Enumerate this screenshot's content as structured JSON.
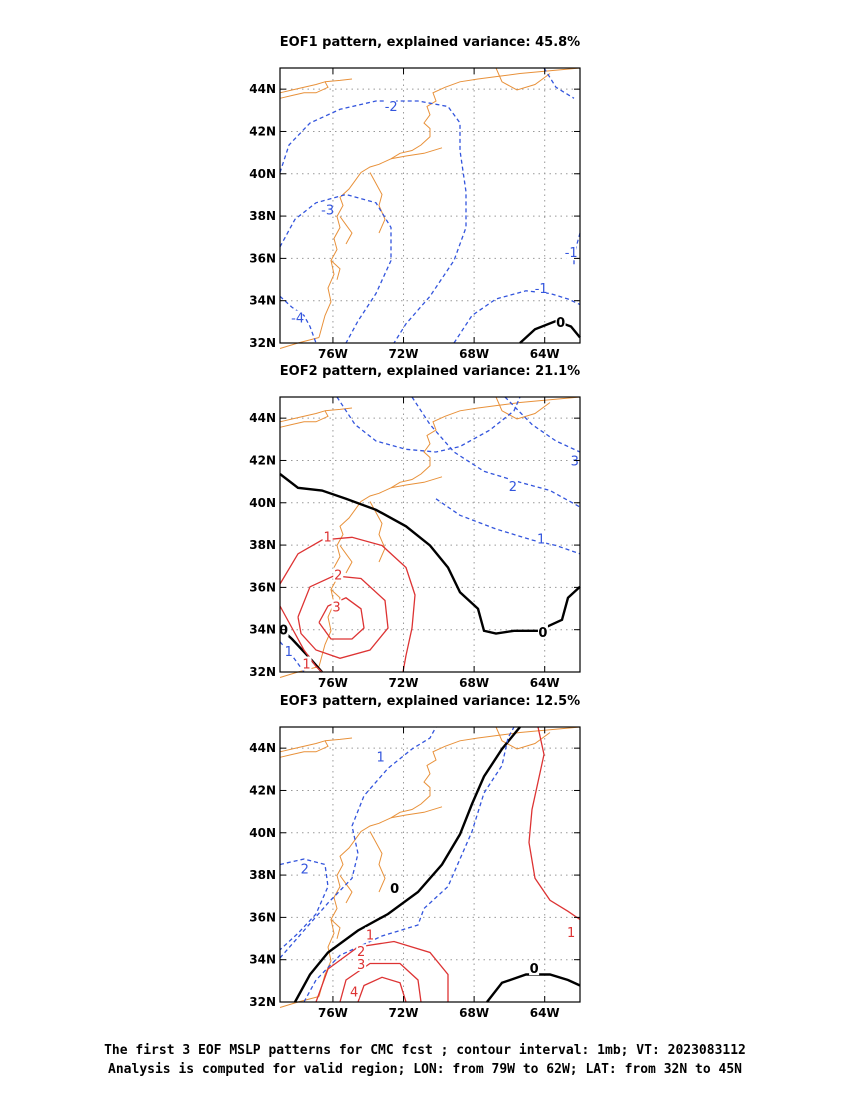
{
  "chart_data": [
    {
      "type": "contour-map",
      "title": "EOF1 pattern, explained variance: 45.8%",
      "x_ticks": [
        "76W",
        "72W",
        "68W",
        "64W"
      ],
      "y_ticks": [
        "32N",
        "34N",
        "36N",
        "38N",
        "40N",
        "42N",
        "44N"
      ],
      "lon_range": [
        -79,
        -62
      ],
      "lat_range": [
        32,
        45
      ],
      "contour_labels": [
        {
          "text": "-2",
          "lon": -72.7,
          "lat": 43.2,
          "color": "#3355dd"
        },
        {
          "text": "-3",
          "lon": -76.3,
          "lat": 38.3,
          "color": "#3355dd"
        },
        {
          "text": "-4",
          "lon": -78.0,
          "lat": 33.2,
          "color": "#3355dd"
        },
        {
          "text": "-1",
          "lon": -64.2,
          "lat": 34.6,
          "color": "#3355dd"
        },
        {
          "text": "-1",
          "lon": -62.5,
          "lat": 36.3,
          "color": "#3355dd"
        },
        {
          "text": "0",
          "lon": -63.1,
          "lat": 33.0,
          "color": "#000000"
        }
      ]
    },
    {
      "type": "contour-map",
      "title": "EOF2 pattern, explained variance: 21.1%",
      "x_ticks": [
        "76W",
        "72W",
        "68W",
        "64W"
      ],
      "y_ticks": [
        "32N",
        "34N",
        "36N",
        "38N",
        "40N",
        "42N",
        "44N"
      ],
      "lon_range": [
        -79,
        -62
      ],
      "lat_range": [
        32,
        45
      ],
      "contour_labels": [
        {
          "text": "3",
          "lon": -62.3,
          "lat": 42.0,
          "color": "#3355dd"
        },
        {
          "text": "2",
          "lon": -65.8,
          "lat": 40.8,
          "color": "#3355dd"
        },
        {
          "text": "1",
          "lon": -64.2,
          "lat": 38.3,
          "color": "#3355dd"
        },
        {
          "text": "1",
          "lon": -76.3,
          "lat": 38.4,
          "color": "#dd3333"
        },
        {
          "text": "2",
          "lon": -75.7,
          "lat": 36.6,
          "color": "#dd3333"
        },
        {
          "text": "3",
          "lon": -75.8,
          "lat": 35.1,
          "color": "#dd3333"
        },
        {
          "text": "1",
          "lon": -77.5,
          "lat": 32.4,
          "color": "#dd3333"
        },
        {
          "text": "1",
          "lon": -78.5,
          "lat": 33.0,
          "color": "#3355dd"
        },
        {
          "text": "0",
          "lon": -64.1,
          "lat": 33.9,
          "color": "#000000"
        },
        {
          "text": "0",
          "lon": -78.8,
          "lat": 34.0,
          "color": "#000000"
        }
      ]
    },
    {
      "type": "contour-map",
      "title": "EOF3 pattern, explained variance: 12.5%",
      "x_ticks": [
        "76W",
        "72W",
        "68W",
        "64W"
      ],
      "y_ticks": [
        "32N",
        "34N",
        "36N",
        "38N",
        "40N",
        "42N",
        "44N"
      ],
      "lon_range": [
        -79,
        -62
      ],
      "lat_range": [
        32,
        45
      ],
      "contour_labels": [
        {
          "text": "1",
          "lon": -73.3,
          "lat": 43.6,
          "color": "#3355dd"
        },
        {
          "text": "2",
          "lon": -77.6,
          "lat": 38.3,
          "color": "#3355dd"
        },
        {
          "text": "0",
          "lon": -72.5,
          "lat": 37.4,
          "color": "#000000"
        },
        {
          "text": "1",
          "lon": -73.9,
          "lat": 35.2,
          "color": "#dd3333"
        },
        {
          "text": "2",
          "lon": -74.4,
          "lat": 34.4,
          "color": "#dd3333"
        },
        {
          "text": "3",
          "lon": -74.4,
          "lat": 33.8,
          "color": "#dd3333"
        },
        {
          "text": "4",
          "lon": -74.8,
          "lat": 32.5,
          "color": "#dd3333"
        },
        {
          "text": "1",
          "lon": -62.5,
          "lat": 35.3,
          "color": "#dd3333"
        },
        {
          "text": "0",
          "lon": -64.6,
          "lat": 33.6,
          "color": "#000000"
        }
      ]
    }
  ],
  "caption": {
    "line1": "The first 3 EOF MSLP patterns for CMC fcst ; contour interval: 1mb; VT: 2023083112",
    "line2": "Analysis is computed for valid region; LON: from 79W to 62W; LAT: from 32N to 45N"
  },
  "colors": {
    "negative": "#3355dd",
    "positive": "#dd3333",
    "zero": "#000000",
    "coast": "#e8913a",
    "grid": "#999999"
  }
}
